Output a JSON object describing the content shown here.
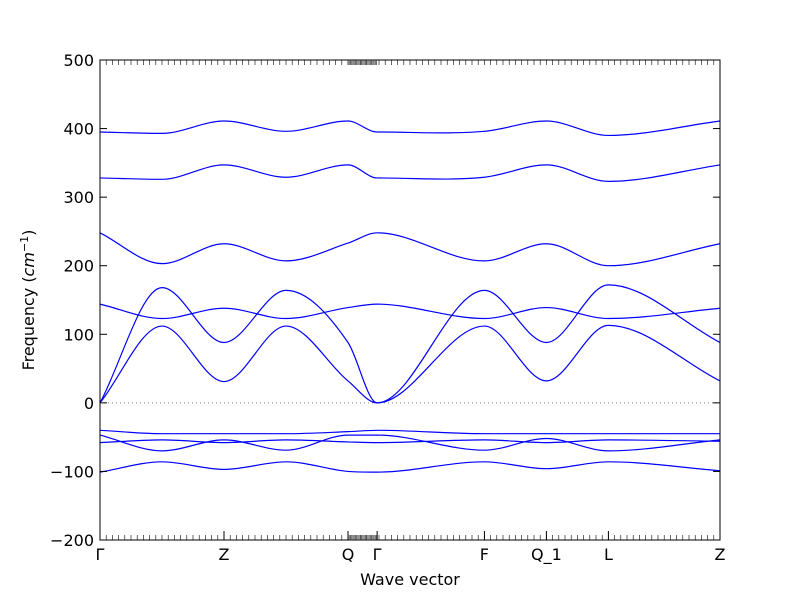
{
  "chart_data": {
    "type": "line",
    "title": "",
    "xlabel": "Wave vector",
    "ylabel": "Frequency",
    "ylabel_unit": "cm",
    "ylabel_unit_exp": "−1",
    "ylim": [
      -200,
      500
    ],
    "yticks": [
      -200,
      -100,
      0,
      100,
      200,
      300,
      400,
      500
    ],
    "grid": false,
    "legend": "none",
    "line_color": "#0000ff",
    "zero_line_color": "#7f7f7f",
    "xlim": [
      0,
      9
    ],
    "high_symmetry_points": [
      {
        "label": "Γ",
        "x": 0
      },
      {
        "label": "Z",
        "x": 2
      },
      {
        "label": "Q",
        "x": 4
      },
      {
        "label": "Γ",
        "x": 4.47
      },
      {
        "label": "F",
        "x": 6.2
      },
      {
        "label": "Q_1",
        "x": 7.2
      },
      {
        "label": "L",
        "x": 8.2
      },
      {
        "label": "Z",
        "x": 10
      }
    ],
    "series": [
      {
        "x": [
          0,
          1,
          2,
          3,
          4,
          4.47,
          6.2,
          7.2,
          8.2,
          10
        ],
        "values": [
          395,
          393,
          411,
          396,
          411,
          395,
          396,
          411,
          390,
          411
        ]
      },
      {
        "x": [
          0,
          1,
          2,
          3,
          4,
          4.47,
          6.2,
          7.2,
          8.2,
          10
        ],
        "values": [
          328,
          326,
          347,
          329,
          347,
          328,
          329,
          347,
          323,
          347
        ]
      },
      {
        "x": [
          0,
          1,
          2,
          3,
          4,
          4.47,
          6.2,
          7.2,
          8.2,
          10
        ],
        "values": [
          248,
          203,
          232,
          207,
          233,
          248,
          207,
          232,
          200,
          232
        ]
      },
      {
        "x": [
          0,
          1,
          2,
          3,
          4,
          4.47,
          6.2,
          7.2,
          8.2,
          10
        ],
        "values": [
          0,
          168,
          88,
          164,
          88,
          0,
          164,
          88,
          172,
          88
        ]
      },
      {
        "x": [
          0,
          1,
          2,
          3,
          4,
          4.47,
          6.2,
          7.2,
          8.2,
          10
        ],
        "values": [
          144,
          123,
          138,
          123,
          139,
          144,
          123,
          139,
          123,
          138
        ]
      },
      {
        "x": [
          0,
          1,
          2,
          3,
          4,
          4.47,
          6.2,
          7.2,
          8.2,
          10
        ],
        "values": [
          0,
          112,
          31,
          112,
          32,
          0,
          112,
          32,
          113,
          32
        ]
      },
      {
        "x": [
          0,
          1,
          2,
          3,
          4,
          4.47,
          6.2,
          7.2,
          8.2,
          10
        ],
        "values": [
          -40,
          -45,
          -45,
          -45,
          -42,
          -40,
          -45,
          -45,
          -45,
          -45
        ]
      },
      {
        "x": [
          0,
          1,
          2,
          3,
          4,
          4.47,
          6.2,
          7.2,
          8.2,
          10
        ],
        "values": [
          -47,
          -70,
          -54,
          -69,
          -47,
          -47,
          -69,
          -52,
          -70,
          -54
        ]
      },
      {
        "x": [
          0,
          1,
          2,
          3,
          4,
          4.47,
          6.2,
          7.2,
          8.2,
          10
        ],
        "values": [
          -58,
          -54,
          -58,
          -54,
          -57,
          -58,
          -54,
          -58,
          -54,
          -56
        ]
      },
      {
        "x": [
          0,
          1,
          2,
          3,
          4,
          4.47,
          6.2,
          7.2,
          8.2,
          10
        ],
        "values": [
          -101,
          -86,
          -97,
          -86,
          -100,
          -101,
          -86,
          -96,
          -86,
          -99
        ]
      }
    ]
  }
}
